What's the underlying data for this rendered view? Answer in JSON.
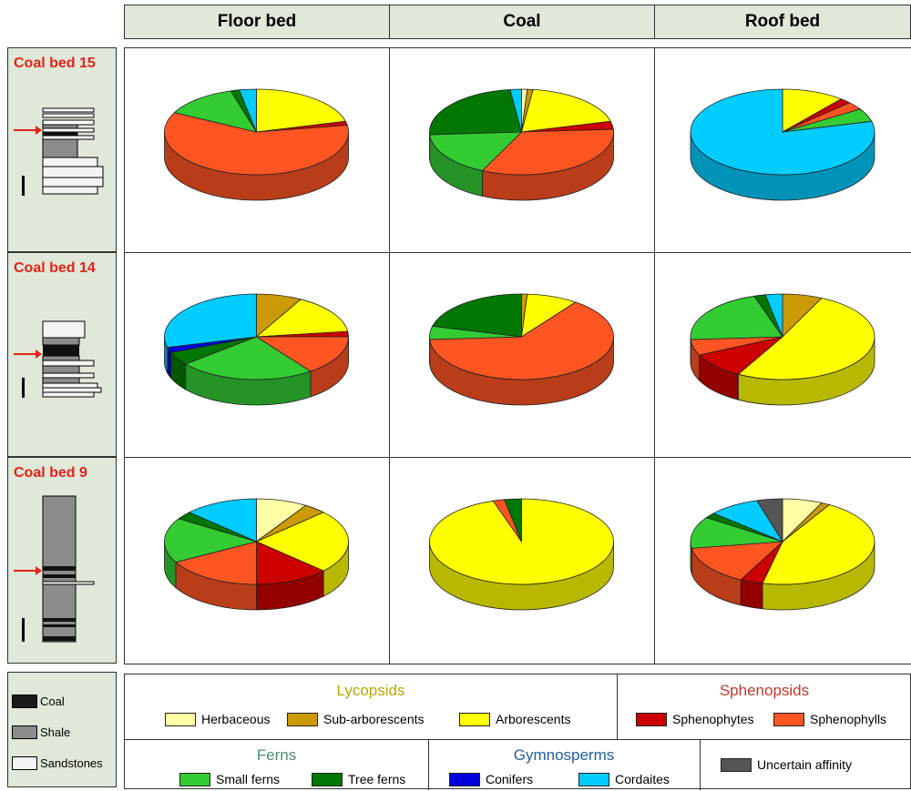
{
  "columns": [
    "Floor bed",
    "Coal",
    "Roof bed"
  ],
  "rows": [
    "Coal bed 15",
    "Coal bed 14",
    "Coal bed 9"
  ],
  "lithology_legend": [
    "Coal",
    "Shale",
    "Sandstones"
  ],
  "legend": {
    "lycopsids": {
      "title": "Lycopsids",
      "items": [
        "Herbaceous",
        "Sub-arborescents",
        "Arborescents"
      ]
    },
    "sphenopsids": {
      "title": "Sphenopsids",
      "items": [
        "Sphenophytes",
        "Sphenophylls"
      ]
    },
    "ferns": {
      "title": "Ferns",
      "items": [
        "Small ferns",
        "Tree ferns"
      ]
    },
    "gymnosperms": {
      "title": "Gymnosperms",
      "items": [
        "Conifers",
        "Cordaites"
      ]
    },
    "uncertain": {
      "items": [
        "Uncertain affinity"
      ]
    }
  },
  "colors": {
    "Herbaceous": "#ffffa6",
    "Sub-arborescents": "#cc9a06",
    "Arborescents": "#ffff00",
    "Sphenophytes": "#cc0000",
    "Sphenophylls": "#ff5522",
    "Small ferns": "#33cc33",
    "Tree ferns": "#007700",
    "Conifers": "#0000dd",
    "Cordaites": "#00ccff",
    "Uncertain affinity": "#555555",
    "lycopsids_title": "#b8a800",
    "sphenopsids_title": "#c0392b",
    "ferns_title": "#4f8f6f",
    "gymnosperms_title": "#1f5fa0",
    "row_title": "#e2231a"
  },
  "chart_data": [
    {
      "type": "pie",
      "row": "Coal bed 15",
      "column": "Floor bed",
      "slices": [
        {
          "name": "Arborescents",
          "value": 21
        },
        {
          "name": "Sphenophytes",
          "value": 1.5
        },
        {
          "name": "Sphenophylls",
          "value": 60
        },
        {
          "name": "Small ferns",
          "value": 13
        },
        {
          "name": "Tree ferns",
          "value": 1.5
        },
        {
          "name": "Cordaites",
          "value": 3
        }
      ]
    },
    {
      "type": "pie",
      "row": "Coal bed 15",
      "column": "Coal",
      "slices": [
        {
          "name": "Herbaceous",
          "value": 1
        },
        {
          "name": "Sub-arborescents",
          "value": 1
        },
        {
          "name": "Arborescents",
          "value": 19
        },
        {
          "name": "Sphenophytes",
          "value": 3
        },
        {
          "name": "Sphenophylls",
          "value": 33
        },
        {
          "name": "Small ferns",
          "value": 17
        },
        {
          "name": "Tree ferns",
          "value": 24
        },
        {
          "name": "Cordaites",
          "value": 2
        }
      ]
    },
    {
      "type": "pie",
      "row": "Coal bed 15",
      "column": "Roof bed",
      "slices": [
        {
          "name": "Arborescents",
          "value": 11
        },
        {
          "name": "Sphenophytes",
          "value": 2
        },
        {
          "name": "Sphenophylls",
          "value": 3
        },
        {
          "name": "Small ferns",
          "value": 5
        },
        {
          "name": "Cordaites",
          "value": 79
        }
      ]
    },
    {
      "type": "pie",
      "row": "Coal bed 14",
      "column": "Floor bed",
      "slices": [
        {
          "name": "Sub-arborescents",
          "value": 8
        },
        {
          "name": "Arborescents",
          "value": 15
        },
        {
          "name": "Sphenophytes",
          "value": 2
        },
        {
          "name": "Sphenophylls",
          "value": 15
        },
        {
          "name": "Small ferns",
          "value": 24
        },
        {
          "name": "Tree ferns",
          "value": 5
        },
        {
          "name": "Conifers",
          "value": 2
        },
        {
          "name": "Cordaites",
          "value": 29
        }
      ]
    },
    {
      "type": "pie",
      "row": "Coal bed 14",
      "column": "Coal",
      "slices": [
        {
          "name": "Sub-arborescents",
          "value": 1
        },
        {
          "name": "Arborescents",
          "value": 9
        },
        {
          "name": "Sphenophylls",
          "value": 64
        },
        {
          "name": "Small ferns",
          "value": 5
        },
        {
          "name": "Tree ferns",
          "value": 21
        }
      ]
    },
    {
      "type": "pie",
      "row": "Coal bed 14",
      "column": "Roof bed",
      "slices": [
        {
          "name": "Sub-arborescents",
          "value": 7
        },
        {
          "name": "Arborescents",
          "value": 51
        },
        {
          "name": "Sphenophytes",
          "value": 10
        },
        {
          "name": "Sphenophylls",
          "value": 6
        },
        {
          "name": "Small ferns",
          "value": 21
        },
        {
          "name": "Tree ferns",
          "value": 2
        },
        {
          "name": "Cordaites",
          "value": 3
        }
      ]
    },
    {
      "type": "pie",
      "row": "Coal bed 9",
      "column": "Floor bed",
      "slices": [
        {
          "name": "Herbaceous",
          "value": 9
        },
        {
          "name": "Sub-arborescents",
          "value": 4
        },
        {
          "name": "Arborescents",
          "value": 24
        },
        {
          "name": "Sphenophytes",
          "value": 13
        },
        {
          "name": "Sphenophylls",
          "value": 17
        },
        {
          "name": "Small ferns",
          "value": 17
        },
        {
          "name": "Tree ferns",
          "value": 3
        },
        {
          "name": "Cordaites",
          "value": 13
        }
      ]
    },
    {
      "type": "pie",
      "row": "Coal bed 9",
      "column": "Coal",
      "slices": [
        {
          "name": "Arborescents",
          "value": 95
        },
        {
          "name": "Sphenophylls",
          "value": 2
        },
        {
          "name": "Tree ferns",
          "value": 3
        }
      ]
    },
    {
      "type": "pie",
      "row": "Coal bed 9",
      "column": "Roof bed",
      "slices": [
        {
          "name": "Herbaceous",
          "value": 7
        },
        {
          "name": "Sub-arborescents",
          "value": 1.5
        },
        {
          "name": "Arborescents",
          "value": 45
        },
        {
          "name": "Sphenophytes",
          "value": 4
        },
        {
          "name": "Sphenophylls",
          "value": 15
        },
        {
          "name": "Small ferns",
          "value": 12
        },
        {
          "name": "Tree ferns",
          "value": 2
        },
        {
          "name": "Cordaites",
          "value": 9
        },
        {
          "name": "Uncertain affinity",
          "value": 4.5
        }
      ]
    }
  ]
}
